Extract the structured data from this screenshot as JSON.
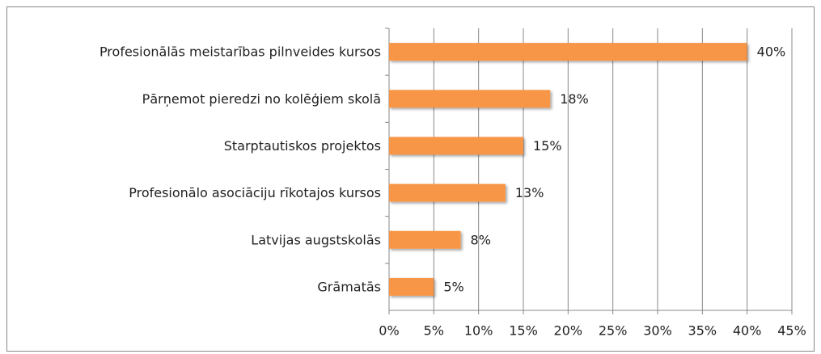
{
  "chart_data": {
    "type": "bar",
    "orientation": "horizontal",
    "categories": [
      "Profesionālās meistarības pilnveides kursos",
      "Pārņemot pieredzi no kolēģiem skolā",
      "Starptautiskos projektos",
      "Profesionālo asociāciju rīkotajos kursos",
      "Latvijas augstskolās",
      "Grāmatās"
    ],
    "values": [
      40,
      18,
      15,
      13,
      8,
      5
    ],
    "value_labels": [
      "40%",
      "18%",
      "15%",
      "13%",
      "8%",
      "5%"
    ],
    "color": "#f79646",
    "xlim": [
      0,
      45
    ],
    "xticks": [
      {
        "value": 0,
        "label": "0%"
      },
      {
        "value": 5,
        "label": "5%"
      },
      {
        "value": 10,
        "label": "10%"
      },
      {
        "value": 15,
        "label": "15%"
      },
      {
        "value": 20,
        "label": "20%"
      },
      {
        "value": 25,
        "label": "25%"
      },
      {
        "value": 30,
        "label": "30%"
      },
      {
        "value": 35,
        "label": "35%"
      },
      {
        "value": 40,
        "label": "40%"
      },
      {
        "value": 45,
        "label": "45%"
      }
    ],
    "grid": true
  }
}
